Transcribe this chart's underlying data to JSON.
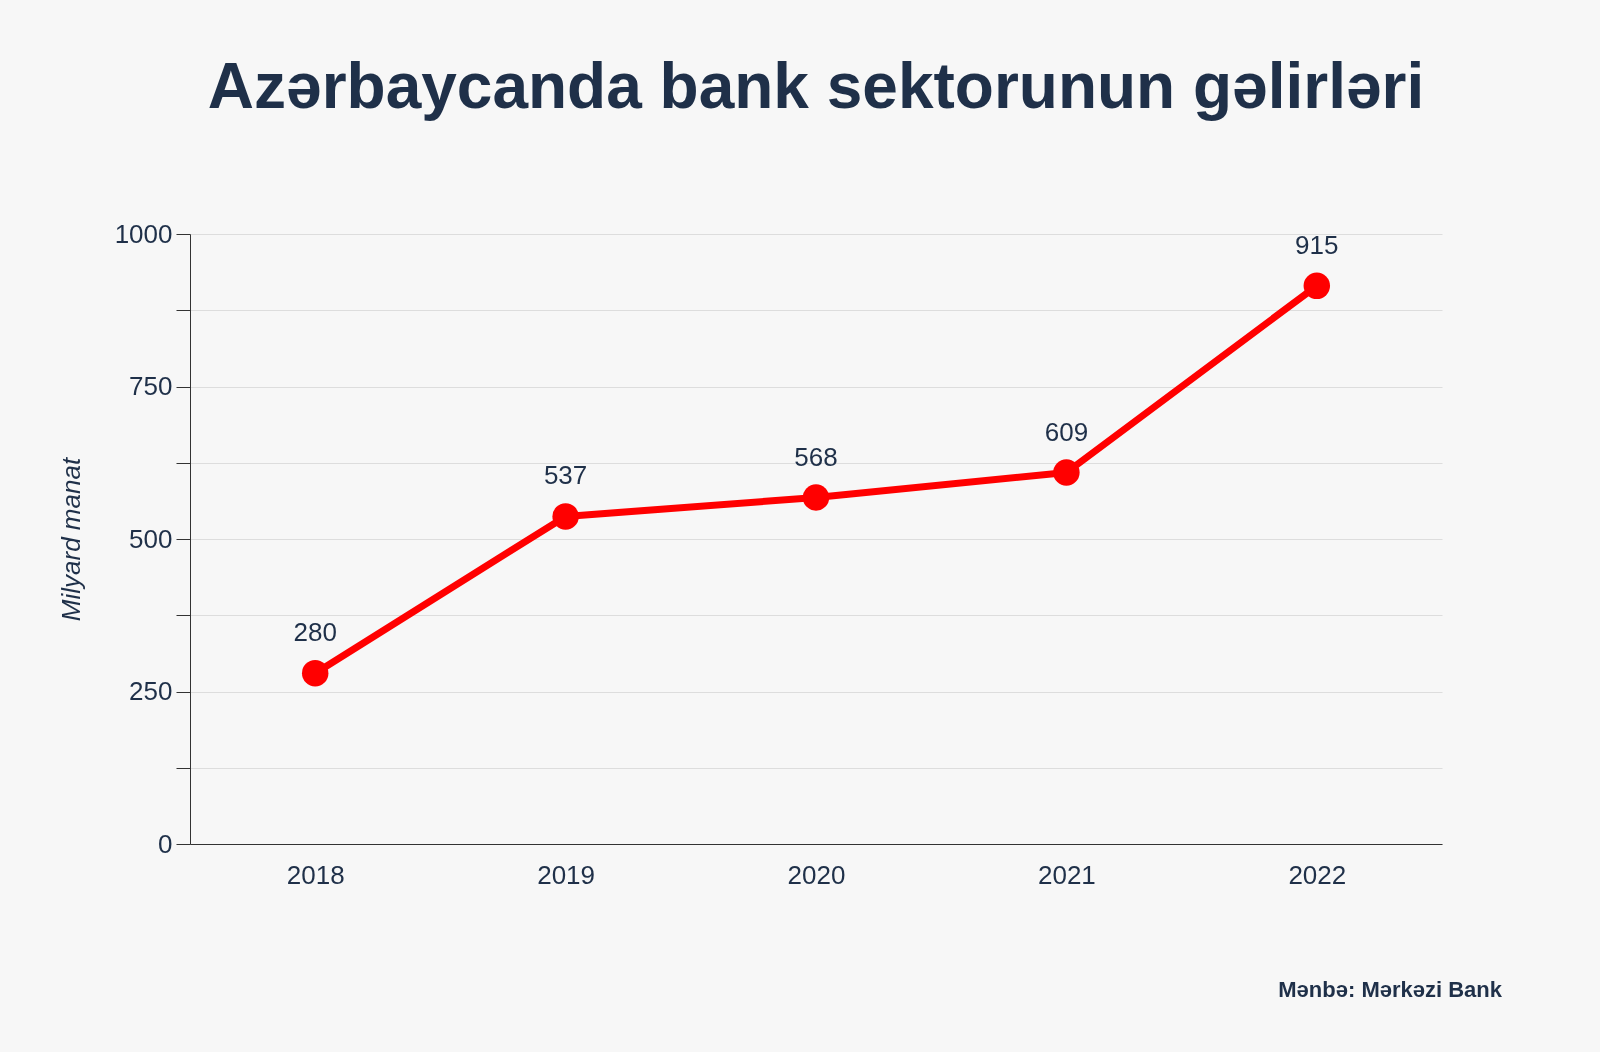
{
  "chart_data": {
    "type": "line",
    "title": "Azərbaycanda bank sektorunun gəlirləri",
    "ylabel": "Milyard manat",
    "categories": [
      "2018",
      "2019",
      "2020",
      "2021",
      "2022"
    ],
    "series": [
      {
        "color": "#ff0000",
        "values": [
          280,
          537,
          568,
          609,
          915
        ]
      }
    ],
    "ylim": [
      0,
      1000
    ],
    "yticks": [
      0,
      {
        "value": 125,
        "label": null
      },
      250,
      {
        "value": 375,
        "label": null
      },
      500,
      {
        "value": 625,
        "label": null
      },
      750,
      {
        "value": 875,
        "label": null
      },
      1000
    ],
    "grid": true,
    "marker": "circle",
    "line_style": "solid",
    "data_labels": true,
    "annotations": [
      "Mənbə: Mərkəzi Bank"
    ]
  }
}
